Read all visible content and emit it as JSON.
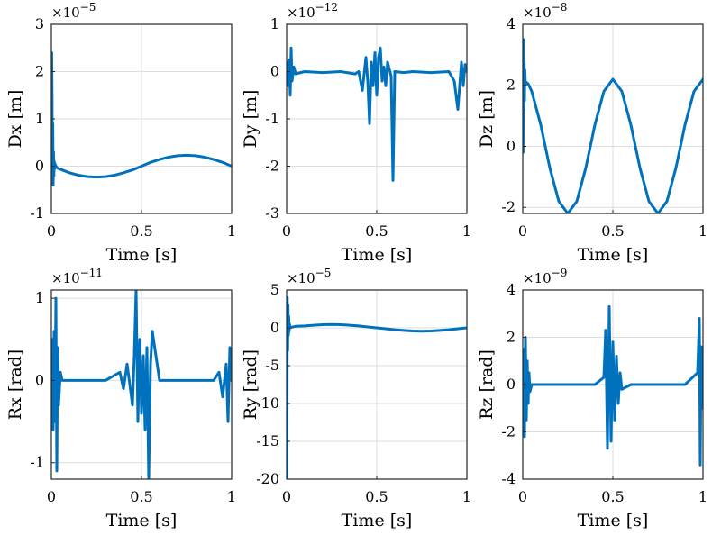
{
  "chart_data": [
    {
      "type": "line",
      "xlabel": "Time [s]",
      "ylabel": "Dx [m]",
      "exponent": "×10",
      "exponent_power": "−5",
      "xlim": [
        0,
        1
      ],
      "ylim": [
        -1,
        3
      ],
      "xticks": [
        0,
        0.5,
        1
      ],
      "xtick_labels": [
        "0",
        "0.5",
        "1"
      ],
      "yticks": [
        -1,
        0,
        1,
        2,
        3
      ],
      "ytick_labels": [
        "-1",
        "0",
        "1",
        "2",
        "3"
      ],
      "grid": true,
      "color": "#0072BD",
      "x": [
        0,
        0.002,
        0.004,
        0.006,
        0.008,
        0.01,
        0.012,
        0.014,
        0.016,
        0.018,
        0.02,
        0.025,
        0.03,
        0.04,
        0.06,
        0.1,
        0.15,
        0.2,
        0.25,
        0.3,
        0.35,
        0.4,
        0.45,
        0.5,
        0.55,
        0.6,
        0.65,
        0.7,
        0.75,
        0.8,
        0.85,
        0.9,
        0.95,
        1.0
      ],
      "y": [
        0,
        2.4,
        1.5,
        -0.3,
        0.9,
        -0.4,
        0.3,
        -0.2,
        0.1,
        -0.05,
        0.05,
        0,
        -0.03,
        -0.05,
        -0.08,
        -0.14,
        -0.19,
        -0.22,
        -0.23,
        -0.22,
        -0.19,
        -0.14,
        -0.08,
        0,
        0.08,
        0.14,
        0.19,
        0.22,
        0.23,
        0.22,
        0.19,
        0.14,
        0.08,
        0.0
      ]
    },
    {
      "type": "line",
      "xlabel": "Time [s]",
      "ylabel": "Dy [m]",
      "exponent": "×10",
      "exponent_power": "−12",
      "xlim": [
        0,
        1
      ],
      "ylim": [
        -3,
        1
      ],
      "xticks": [
        0,
        0.5,
        1
      ],
      "xtick_labels": [
        "0",
        "0.5",
        "1"
      ],
      "yticks": [
        -3,
        -2,
        -1,
        0,
        1
      ],
      "ytick_labels": [
        "-3",
        "-2",
        "-1",
        "0",
        "1"
      ],
      "grid": true,
      "color": "#0072BD",
      "x": [
        0,
        0.005,
        0.01,
        0.015,
        0.02,
        0.025,
        0.03,
        0.04,
        0.05,
        0.1,
        0.2,
        0.3,
        0.38,
        0.4,
        0.42,
        0.44,
        0.45,
        0.46,
        0.47,
        0.48,
        0.49,
        0.5,
        0.51,
        0.52,
        0.53,
        0.54,
        0.55,
        0.56,
        0.58,
        0.59,
        0.6,
        0.65,
        0.7,
        0.8,
        0.9,
        0.93,
        0.95,
        0.97,
        0.98,
        0.99,
        1.0
      ],
      "y": [
        0,
        0.2,
        -0.3,
        0.25,
        -0.5,
        0.5,
        -0.2,
        0.1,
        -0.05,
        0,
        -0.02,
        0,
        -0.05,
        0,
        -0.4,
        0.3,
        -0.2,
        -1.1,
        0.2,
        -0.3,
        0.4,
        -0.5,
        0.3,
        0.5,
        -0.2,
        0.1,
        -0.3,
        0.2,
        -0.1,
        -2.3,
        0,
        -0.02,
        0,
        -0.02,
        0,
        -0.2,
        -0.8,
        0.2,
        -0.3,
        0.15,
        0
      ]
    },
    {
      "type": "line",
      "xlabel": "Time [s]",
      "ylabel": "Dz [m]",
      "exponent": "×10",
      "exponent_power": "−8",
      "xlim": [
        0,
        1
      ],
      "ylim": [
        -2.2,
        4
      ],
      "xticks": [
        0,
        0.5,
        1
      ],
      "xtick_labels": [
        "0",
        "0.5",
        "1"
      ],
      "yticks": [
        -2,
        0,
        2,
        4
      ],
      "ytick_labels": [
        "-2",
        "0",
        "2",
        "4"
      ],
      "grid": true,
      "color": "#0072BD",
      "x": [
        0,
        0.002,
        0.004,
        0.006,
        0.008,
        0.01,
        0.012,
        0.015,
        0.02,
        0.03,
        0.05,
        0.1,
        0.15,
        0.2,
        0.25,
        0.3,
        0.35,
        0.4,
        0.45,
        0.5,
        0.55,
        0.6,
        0.65,
        0.7,
        0.75,
        0.8,
        0.85,
        0.9,
        0.95,
        1.0
      ],
      "y": [
        0,
        -0.2,
        3.5,
        1.2,
        2.8,
        1.5,
        2.5,
        2.0,
        2.1,
        2.05,
        1.8,
        0.7,
        -0.7,
        -1.8,
        -2.2,
        -1.8,
        -0.7,
        0.7,
        1.8,
        2.2,
        1.8,
        0.7,
        -0.7,
        -1.8,
        -2.2,
        -1.8,
        -0.7,
        0.7,
        1.8,
        2.2
      ]
    },
    {
      "type": "line",
      "xlabel": "Time [s]",
      "ylabel": "Rx [rad]",
      "exponent": "×10",
      "exponent_power": "−11",
      "xlim": [
        0,
        1
      ],
      "ylim": [
        -1.2,
        1.1
      ],
      "xticks": [
        0,
        0.5,
        1
      ],
      "xtick_labels": [
        "0",
        "0.5",
        "1"
      ],
      "yticks": [
        -1,
        0,
        1
      ],
      "ytick_labels": [
        "-1",
        "0",
        "1"
      ],
      "grid": true,
      "color": "#0072BD",
      "x": [
        0,
        0.005,
        0.01,
        0.015,
        0.02,
        0.025,
        0.03,
        0.035,
        0.04,
        0.05,
        0.06,
        0.1,
        0.2,
        0.3,
        0.38,
        0.4,
        0.42,
        0.45,
        0.46,
        0.47,
        0.48,
        0.49,
        0.5,
        0.51,
        0.52,
        0.53,
        0.54,
        0.55,
        0.56,
        0.6,
        0.7,
        0.8,
        0.9,
        0.93,
        0.95,
        0.97,
        0.98,
        0.99,
        1.0
      ],
      "y": [
        0,
        0.5,
        -0.6,
        0.6,
        -0.5,
        1.0,
        -1.1,
        0.4,
        -0.3,
        0.1,
        0,
        0,
        0,
        0,
        0.1,
        -0.1,
        0.2,
        -0.3,
        0.3,
        1.1,
        -0.5,
        0.5,
        -0.4,
        0.3,
        -0.6,
        0.4,
        -1.2,
        0.2,
        0.6,
        0,
        0,
        0,
        0,
        0.1,
        -0.2,
        0.2,
        -0.5,
        0.4,
        0
      ]
    },
    {
      "type": "line",
      "xlabel": "Time [s]",
      "ylabel": "Ry [rad]",
      "exponent": "×10",
      "exponent_power": "−5",
      "xlim": [
        0,
        1
      ],
      "ylim": [
        -20,
        5
      ],
      "xticks": [
        0,
        0.5,
        1
      ],
      "xtick_labels": [
        "0",
        "0.5",
        "1"
      ],
      "yticks": [
        -20,
        -15,
        -10,
        -5,
        0,
        5
      ],
      "ytick_labels": [
        "-20",
        "-15",
        "-10",
        "-5",
        "0",
        "5"
      ],
      "grid": true,
      "color": "#0072BD",
      "x": [
        0,
        0.002,
        0.004,
        0.006,
        0.008,
        0.01,
        0.012,
        0.014,
        0.016,
        0.02,
        0.03,
        0.05,
        0.1,
        0.15,
        0.2,
        0.25,
        0.3,
        0.35,
        0.4,
        0.45,
        0.5,
        0.55,
        0.6,
        0.65,
        0.7,
        0.75,
        0.8,
        0.85,
        0.9,
        0.95,
        1.0
      ],
      "y": [
        0,
        -20,
        4,
        -3,
        3,
        -1,
        1.5,
        -0.5,
        0.5,
        0,
        0.1,
        0.2,
        0.25,
        0.35,
        0.42,
        0.45,
        0.42,
        0.35,
        0.25,
        0.12,
        0,
        -0.12,
        -0.25,
        -0.35,
        -0.42,
        -0.45,
        -0.42,
        -0.35,
        -0.25,
        -0.12,
        0
      ]
    },
    {
      "type": "line",
      "xlabel": "Time [s]",
      "ylabel": "Rz [rad]",
      "exponent": "×10",
      "exponent_power": "−9",
      "xlim": [
        0,
        1
      ],
      "ylim": [
        -4,
        4
      ],
      "xticks": [
        0,
        0.5,
        1
      ],
      "xtick_labels": [
        "0",
        "0.5",
        "1"
      ],
      "yticks": [
        -4,
        -2,
        0,
        2,
        4
      ],
      "ytick_labels": [
        "-4",
        "-2",
        "0",
        "2",
        "4"
      ],
      "grid": true,
      "color": "#0072BD",
      "x": [
        0,
        0.005,
        0.01,
        0.015,
        0.02,
        0.025,
        0.03,
        0.035,
        0.04,
        0.05,
        0.1,
        0.2,
        0.3,
        0.4,
        0.45,
        0.46,
        0.47,
        0.48,
        0.49,
        0.5,
        0.51,
        0.52,
        0.53,
        0.54,
        0.55,
        0.6,
        0.7,
        0.8,
        0.9,
        0.97,
        0.98,
        0.985,
        0.99,
        0.995,
        1.0
      ],
      "y": [
        0,
        1.5,
        -2.2,
        2.0,
        -1.5,
        1.0,
        -0.8,
        0.5,
        -0.3,
        0,
        0,
        0,
        0,
        0,
        0.3,
        2.3,
        -2.7,
        3.3,
        -2.4,
        1.8,
        -1.5,
        1.2,
        -0.8,
        0.5,
        -0.2,
        0,
        0,
        0,
        0,
        0.5,
        2.8,
        -3.4,
        1.6,
        -1.0,
        0
      ]
    }
  ]
}
